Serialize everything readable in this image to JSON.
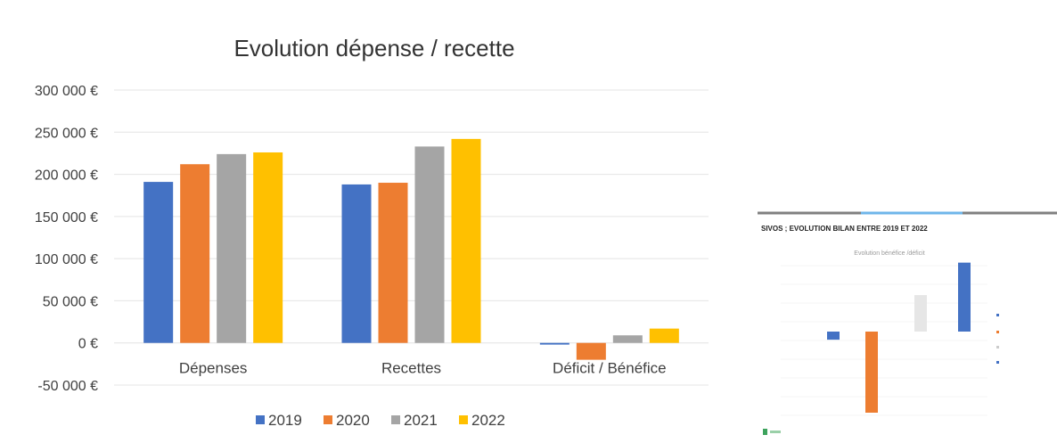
{
  "chart_data": [
    {
      "type": "bar",
      "title": "Evolution dépense / recette",
      "categories": [
        "Dépenses",
        "Recettes",
        "Déficit / Bénéfice"
      ],
      "series": [
        {
          "name": "2019",
          "color": "#4472C4",
          "values": [
            191000,
            188000,
            -2000
          ]
        },
        {
          "name": "2020",
          "color": "#ED7D31",
          "values": [
            212000,
            190000,
            -20000
          ]
        },
        {
          "name": "2021",
          "color": "#A5A5A5",
          "values": [
            224000,
            233000,
            9000
          ]
        },
        {
          "name": "2022",
          "color": "#FFC000",
          "values": [
            226000,
            242000,
            17000
          ]
        }
      ],
      "y_ticks": [
        "300 000 €",
        "250 000 €",
        "200 000 €",
        "150 000 €",
        "100 000 €",
        "50 000 €",
        "0 €",
        "-50 000 €"
      ],
      "ylim": [
        -50000,
        300000
      ],
      "grid": true,
      "legend": "bottom"
    },
    {
      "type": "bar",
      "title": "SIVOS ; EVOLUTION BILAN ENTRE 2019 ET 2022",
      "subtitle": "Evolution bénéfice /déficit",
      "series": [
        {
          "color": "#4472C4",
          "value": -2000
        },
        {
          "color": "#ED7D31",
          "value": -20000
        },
        {
          "color": "#E6E6E6",
          "value": 9000
        },
        {
          "color": "#4472C4",
          "value": 17000
        }
      ]
    }
  ]
}
